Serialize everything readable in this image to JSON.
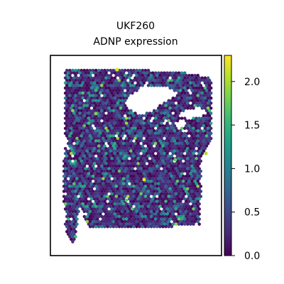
{
  "chart_data": {
    "type": "heatmap",
    "subtype": "spatial-spot-map",
    "title_lines": [
      "UKF260",
      "ADNP expression"
    ],
    "xlabel": "",
    "ylabel": "",
    "colormap": "viridis",
    "color_range": [
      0.0,
      2.3
    ],
    "colorbar_ticks": [
      0.0,
      0.5,
      1.0,
      1.5,
      2.0
    ],
    "colorbar_tick_labels": [
      "0.0",
      "0.5",
      "1.0",
      "1.5",
      "2.0"
    ],
    "grid": false,
    "spots": {
      "layout": "hexagonal-grid",
      "distribution": "mostly 0.0–0.5 (dark purple), scattered 0.7–1.3 (teal), rare 1.5–2.3 (green/yellow)",
      "notable_values": [
        2.25,
        2.2,
        2.0,
        1.9,
        1.8,
        1.7
      ]
    }
  },
  "colors": {
    "viridis_stops": [
      "#440154",
      "#482878",
      "#3e4989",
      "#31688e",
      "#26828e",
      "#1f9e89",
      "#35b779",
      "#6ece58",
      "#b5de2b",
      "#fde725"
    ],
    "axes_frame": "#000000",
    "background": "#ffffff"
  }
}
